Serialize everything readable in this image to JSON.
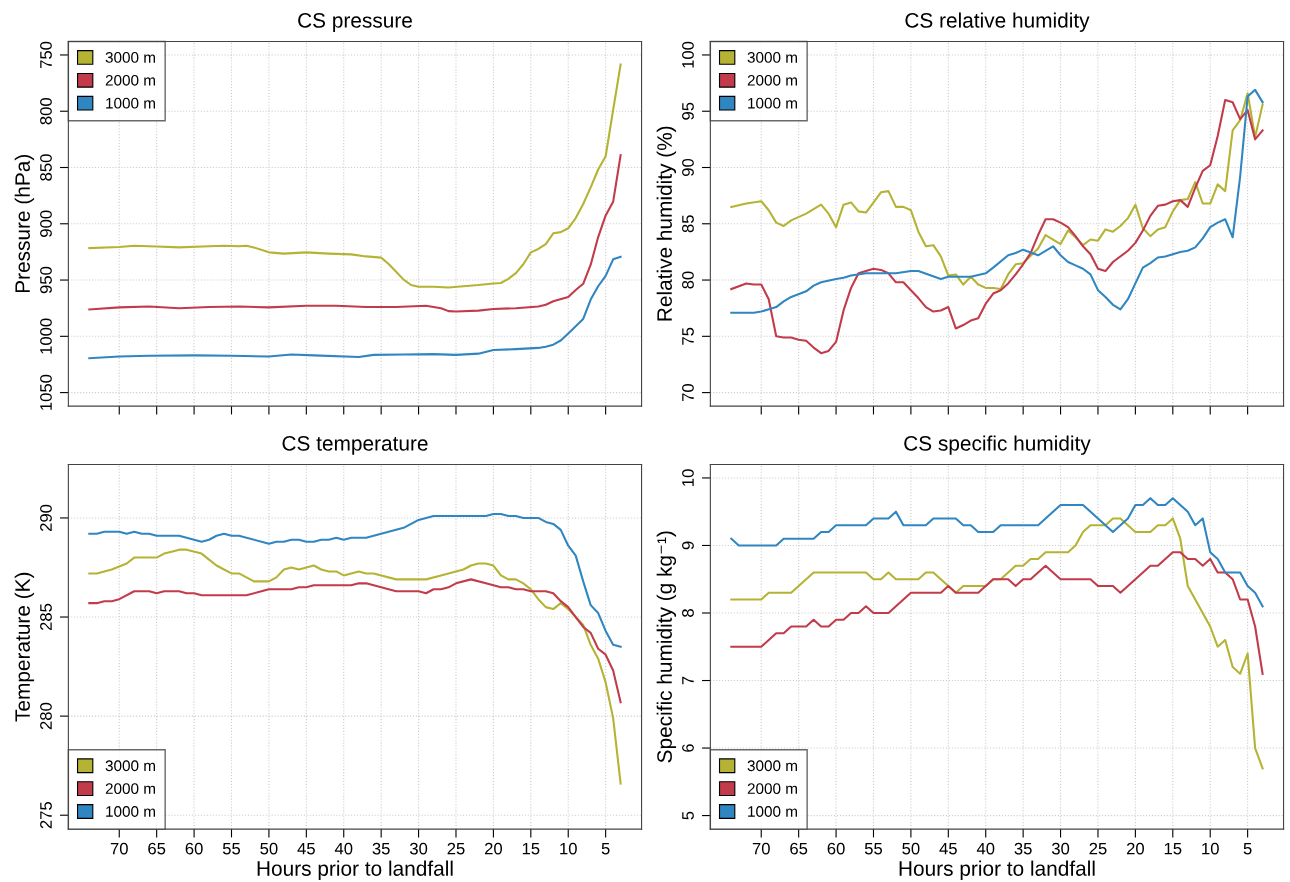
{
  "chart_data": [
    {
      "type": "line",
      "title": "CS pressure",
      "ylabel": "Pressure (hPa)",
      "xlim": [
        76.8,
        0.2
      ],
      "xticks": [
        70,
        65,
        60,
        55,
        50,
        45,
        40,
        35,
        30,
        25,
        20,
        15,
        10,
        5
      ],
      "ylim": [
        1062,
        738
      ],
      "yticks": [
        750,
        800,
        850,
        900,
        950,
        1000,
        1050
      ],
      "tick_labels": "y",
      "grid": true,
      "legend": "top left",
      "line_style": "solid",
      "marker": "none",
      "series": [
        {
          "name": "3000 m",
          "color": "#b5b334",
          "x": [
            74,
            70,
            68,
            65,
            62,
            58,
            56,
            54,
            53,
            52,
            50,
            48,
            45,
            42,
            39,
            37,
            35,
            34,
            33,
            32,
            31,
            30,
            28,
            26,
            24,
            22,
            20,
            19,
            18,
            17,
            16,
            15,
            14,
            13,
            12,
            11,
            10,
            9,
            8,
            7,
            6,
            5,
            4,
            3
          ],
          "values": [
            921.6,
            920.6,
            919.5,
            920.2,
            921,
            920,
            919.5,
            920,
            919.5,
            921,
            925.4,
            926.5,
            925.4,
            926.5,
            927.2,
            929,
            930.1,
            935.7,
            942.6,
            949.6,
            954.4,
            955.9,
            955.9,
            956.6,
            955.5,
            954.4,
            953,
            952.6,
            948.9,
            943.8,
            936,
            925.4,
            922.4,
            918,
            908.5,
            907.4,
            904,
            894.9,
            882.4,
            867.6,
            851.8,
            840,
            798.9,
            758.5
          ]
        },
        {
          "name": "2000 m",
          "color": "#c23b4a",
          "x": [
            74,
            70,
            66,
            62,
            58,
            54,
            50,
            45,
            41,
            37,
            33,
            29,
            27,
            26,
            25,
            22,
            20,
            17,
            14,
            13,
            12,
            10,
            9,
            8,
            7,
            6,
            5,
            4,
            3
          ],
          "values": [
            976.1,
            974.3,
            973.5,
            975,
            974,
            973.5,
            974.3,
            972.8,
            972.8,
            974,
            974,
            972.8,
            975,
            977.6,
            978,
            977.2,
            975.7,
            975,
            973.5,
            972,
            968.8,
            965,
            958.8,
            953.3,
            936.4,
            911.8,
            892.6,
            880.5,
            839
          ]
        },
        {
          "name": "1000 m",
          "color": "#2f86c1",
          "x": [
            74,
            70,
            66,
            60,
            55,
            50,
            47,
            44,
            38,
            36,
            32,
            28,
            25,
            22,
            20,
            17,
            14,
            13,
            12,
            11,
            10,
            8,
            7,
            6,
            5,
            4,
            3
          ],
          "values": [
            1019.5,
            1018,
            1017.3,
            1016.9,
            1017.3,
            1018,
            1016.2,
            1016.9,
            1018.4,
            1016.5,
            1016.2,
            1015.8,
            1016.5,
            1015.4,
            1012.1,
            1011.4,
            1010.3,
            1009.2,
            1007.4,
            1003.7,
            997.4,
            984.6,
            967.3,
            955.5,
            946.3,
            931.6,
            929.4
          ]
        }
      ]
    },
    {
      "type": "line",
      "title": "CS relative humidity",
      "ylabel": "Relative humidity (%)",
      "xlim": [
        76.8,
        0.2
      ],
      "xticks": [
        70,
        65,
        60,
        55,
        50,
        45,
        40,
        35,
        30,
        25,
        20,
        15,
        10,
        5
      ],
      "ylim": [
        68.8,
        101.2
      ],
      "yticks": [
        70,
        75,
        80,
        85,
        90,
        95,
        100
      ],
      "tick_labels": "y",
      "grid": true,
      "legend": "top left",
      "line_style": "solid",
      "marker": "none",
      "series": [
        {
          "name": "3000 m",
          "color": "#b5b334",
          "x": [
            74,
            72,
            70,
            69,
            68,
            67,
            66,
            64,
            62,
            61,
            60,
            59,
            58,
            57,
            56,
            54,
            53,
            52,
            51,
            50,
            49,
            48,
            47,
            46,
            45,
            44,
            43,
            42,
            41,
            40,
            39,
            38,
            37,
            36,
            35,
            33,
            32,
            31,
            30,
            29,
            28,
            27,
            26,
            25,
            24,
            23,
            22,
            21,
            20,
            19,
            18,
            17,
            16,
            15,
            14,
            13,
            12,
            11,
            10,
            9,
            8,
            7,
            6,
            5,
            4,
            3
          ],
          "values": [
            86.5,
            86.8,
            87.0,
            86.2,
            85.1,
            84.8,
            85.3,
            85.9,
            86.7,
            85.9,
            84.7,
            86.7,
            86.9,
            86.1,
            86.0,
            87.8,
            87.9,
            86.5,
            86.5,
            86.2,
            84.3,
            83.0,
            83.1,
            82.1,
            80.4,
            80.5,
            79.6,
            80.3,
            79.6,
            79.3,
            79.3,
            79.2,
            80.5,
            81.4,
            81.5,
            82.8,
            84.0,
            83.6,
            83.2,
            84.4,
            83.8,
            83.1,
            83.6,
            83.5,
            84.5,
            84.3,
            84.8,
            85.5,
            86.7,
            84.6,
            83.9,
            84.5,
            84.7,
            86.1,
            87.1,
            87.2,
            88.7,
            86.8,
            86.8,
            88.5,
            87.9,
            93.3,
            94.2,
            96.6,
            92.7,
            95.6
          ]
        },
        {
          "name": "2000 m",
          "color": "#c23b4a",
          "x": [
            74,
            72,
            71,
            70,
            69,
            68,
            67,
            66,
            65,
            64,
            63,
            62,
            61,
            60,
            59,
            58,
            57,
            56,
            55,
            54,
            53,
            52,
            51,
            50,
            49,
            48,
            47,
            46,
            45,
            44,
            43,
            42,
            41,
            40,
            39,
            38,
            37,
            36,
            35,
            34,
            33,
            32,
            31,
            30,
            29,
            28,
            27,
            26,
            25,
            24,
            23,
            21,
            20,
            19,
            18,
            17,
            16,
            15,
            14,
            13,
            12,
            11,
            10,
            9,
            8,
            7,
            6,
            5,
            4,
            3
          ],
          "values": [
            79.2,
            79.7,
            79.6,
            79.6,
            78.3,
            75.0,
            74.9,
            74.9,
            74.7,
            74.6,
            74.0,
            73.5,
            73.7,
            74.5,
            77.3,
            79.3,
            80.6,
            80.8,
            81.0,
            80.9,
            80.6,
            79.8,
            79.8,
            79.1,
            78.4,
            77.6,
            77.2,
            77.3,
            77.6,
            75.7,
            76.0,
            76.4,
            76.6,
            77.9,
            78.8,
            79.1,
            79.7,
            80.5,
            81.4,
            82.4,
            84.0,
            85.4,
            85.4,
            85.1,
            84.7,
            83.9,
            83.0,
            82.3,
            81.0,
            80.8,
            81.6,
            82.6,
            83.3,
            84.4,
            85.7,
            86.6,
            86.7,
            87.0,
            87.1,
            86.5,
            88.2,
            89.7,
            90.2,
            92.8,
            96.0,
            95.8,
            94.3,
            95.1,
            92.5,
            93.3
          ]
        },
        {
          "name": "1000 m",
          "color": "#2f86c1",
          "x": [
            74,
            71,
            70,
            68,
            67,
            66,
            64,
            63,
            62,
            60,
            59,
            58,
            56,
            52,
            50,
            49,
            46,
            45,
            43,
            42,
            40,
            39,
            37,
            36,
            35,
            33,
            31,
            30,
            29,
            28,
            27,
            26,
            25,
            24,
            23,
            22,
            21,
            20,
            19,
            18,
            17,
            16,
            15,
            14,
            13,
            12,
            11,
            10,
            9,
            8,
            7,
            6,
            5,
            4,
            3
          ],
          "values": [
            77.1,
            77.1,
            77.2,
            77.6,
            78.1,
            78.5,
            79.0,
            79.5,
            79.8,
            80.1,
            80.2,
            80.4,
            80.6,
            80.6,
            80.8,
            80.8,
            80.1,
            80.3,
            80.3,
            80.3,
            80.6,
            81.1,
            82.2,
            82.4,
            82.7,
            82.2,
            83.0,
            82.2,
            81.6,
            81.3,
            81.0,
            80.5,
            79.1,
            78.5,
            77.8,
            77.4,
            78.3,
            79.7,
            81.1,
            81.5,
            82.0,
            82.1,
            82.3,
            82.5,
            82.6,
            82.9,
            83.7,
            84.7,
            85.1,
            85.4,
            83.8,
            89.2,
            96.3,
            96.9,
            95.8
          ]
        }
      ]
    },
    {
      "type": "line",
      "title": "CS temperature",
      "xlabel": "Hours prior to landfall",
      "ylabel": "Temperature (K)",
      "xlim": [
        76.8,
        0.2
      ],
      "xticks": [
        70,
        65,
        60,
        55,
        50,
        45,
        40,
        35,
        30,
        25,
        20,
        15,
        10,
        5
      ],
      "ylim": [
        274.3,
        292.7
      ],
      "yticks": [
        275,
        280,
        285,
        290
      ],
      "grid": true,
      "legend": "bottom left",
      "line_style": "solid",
      "marker": "none",
      "series": [
        {
          "name": "3000 m",
          "color": "#b5b334",
          "x": [
            74,
            73,
            71,
            69,
            68,
            66,
            65,
            64,
            63,
            62,
            61,
            59,
            58,
            57,
            56,
            55,
            54,
            53,
            52,
            50,
            49,
            48,
            47,
            46,
            44,
            43,
            42,
            41,
            40,
            38,
            37,
            36,
            33,
            29,
            27,
            24,
            23,
            22,
            21,
            20,
            19,
            18,
            17,
            16,
            15,
            14,
            13,
            12,
            11,
            10,
            9,
            8,
            7,
            6,
            5,
            4,
            3
          ],
          "values": [
            287.2,
            287.2,
            287.4,
            287.7,
            288.0,
            288.0,
            288.0,
            288.2,
            288.3,
            288.4,
            288.4,
            288.2,
            287.9,
            287.6,
            287.4,
            287.2,
            287.2,
            287.0,
            286.8,
            286.8,
            287.0,
            287.4,
            287.5,
            287.4,
            287.6,
            287.4,
            287.3,
            287.3,
            287.1,
            287.3,
            287.2,
            287.2,
            286.9,
            286.9,
            287.1,
            287.4,
            287.6,
            287.7,
            287.7,
            287.6,
            287.1,
            286.9,
            286.9,
            286.7,
            286.4,
            285.9,
            285.5,
            285.4,
            285.7,
            285.4,
            285.0,
            284.6,
            283.6,
            282.9,
            281.7,
            279.9,
            276.6
          ]
        },
        {
          "name": "2000 m",
          "color": "#c23b4a",
          "x": [
            74,
            73,
            72,
            71,
            70,
            68,
            66,
            65,
            64,
            62,
            61,
            60,
            59,
            53,
            51,
            50,
            47,
            46,
            45,
            44,
            39,
            38,
            37,
            33,
            30,
            29,
            28,
            27,
            26,
            25,
            23,
            21,
            19,
            18,
            17,
            16,
            15,
            13,
            12,
            11,
            10,
            9,
            8,
            7,
            6,
            5,
            4,
            3
          ],
          "values": [
            285.7,
            285.7,
            285.8,
            285.8,
            285.9,
            286.3,
            286.3,
            286.2,
            286.3,
            286.3,
            286.2,
            286.2,
            286.1,
            286.1,
            286.3,
            286.4,
            286.4,
            286.5,
            286.5,
            286.6,
            286.6,
            286.7,
            286.7,
            286.3,
            286.3,
            286.2,
            286.4,
            286.4,
            286.5,
            286.7,
            286.9,
            286.7,
            286.5,
            286.5,
            286.4,
            286.4,
            286.3,
            286.3,
            286.2,
            285.8,
            285.5,
            285.0,
            284.5,
            284.2,
            283.4,
            283.1,
            282.3,
            280.7
          ]
        },
        {
          "name": "1000 m",
          "color": "#2f86c1",
          "x": [
            74,
            73,
            72,
            70,
            69,
            68,
            67,
            66,
            65,
            62,
            59,
            58,
            57,
            56,
            55,
            54,
            50,
            49,
            48,
            47,
            46,
            45,
            44,
            43,
            42,
            41,
            40,
            39,
            37,
            34,
            32,
            30,
            29,
            28,
            23,
            22,
            21,
            20,
            19,
            18,
            17,
            16,
            14,
            13,
            12,
            11,
            10,
            9,
            8,
            7,
            6,
            5,
            4,
            3
          ],
          "values": [
            289.2,
            289.2,
            289.3,
            289.3,
            289.2,
            289.3,
            289.2,
            289.2,
            289.1,
            289.1,
            288.8,
            288.9,
            289.1,
            289.2,
            289.1,
            289.1,
            288.7,
            288.8,
            288.8,
            288.9,
            288.9,
            288.8,
            288.8,
            288.9,
            288.9,
            289.0,
            288.9,
            289.0,
            289.0,
            289.3,
            289.5,
            289.9,
            290.0,
            290.1,
            290.1,
            290.1,
            290.1,
            290.2,
            290.2,
            290.1,
            290.1,
            290.0,
            290.0,
            289.8,
            289.7,
            289.4,
            288.6,
            288.1,
            286.8,
            285.6,
            285.2,
            284.3,
            283.6,
            283.5
          ]
        }
      ]
    },
    {
      "type": "line",
      "title": "CS specific humidity",
      "xlabel": "Hours prior to landfall",
      "ylabel": "Specific humidity (g kg⁻¹)",
      "xlim": [
        76.8,
        0.2
      ],
      "xticks": [
        70,
        65,
        60,
        55,
        50,
        45,
        40,
        35,
        30,
        25,
        20,
        15,
        10,
        5
      ],
      "ylim": [
        4.8,
        10.2
      ],
      "yticks": [
        5,
        6,
        7,
        8,
        9,
        10
      ],
      "grid": true,
      "legend": "bottom left",
      "line_style": "solid",
      "marker": "none",
      "series": [
        {
          "name": "3000 m",
          "color": "#b5b334",
          "x": [
            74,
            70,
            69,
            66,
            63,
            56,
            55,
            54,
            53,
            52,
            49,
            48,
            47,
            45,
            44,
            43,
            40,
            39,
            38,
            36,
            35,
            34,
            33,
            32,
            29,
            28,
            27,
            26,
            24,
            23,
            22,
            20,
            18,
            17,
            16,
            15,
            14,
            13,
            10,
            9,
            8,
            7,
            6,
            5,
            4,
            3
          ],
          "values": [
            8.2,
            8.2,
            8.3,
            8.3,
            8.6,
            8.6,
            8.5,
            8.5,
            8.6,
            8.5,
            8.5,
            8.6,
            8.6,
            8.4,
            8.3,
            8.4,
            8.4,
            8.5,
            8.5,
            8.7,
            8.7,
            8.8,
            8.8,
            8.9,
            8.9,
            9.0,
            9.2,
            9.3,
            9.3,
            9.4,
            9.4,
            9.2,
            9.2,
            9.3,
            9.3,
            9.4,
            9.1,
            8.4,
            7.8,
            7.5,
            7.6,
            7.2,
            7.1,
            7.4,
            6.0,
            5.7
          ]
        },
        {
          "name": "2000 m",
          "color": "#c23b4a",
          "x": [
            74,
            70,
            68,
            67,
            66,
            64,
            63,
            62,
            61,
            60,
            59,
            58,
            57,
            56,
            55,
            53,
            50,
            46,
            45,
            44,
            41,
            39,
            37,
            36,
            35,
            34,
            32,
            30,
            26,
            25,
            23,
            22,
            18,
            17,
            15,
            14,
            13,
            12,
            11,
            10,
            9,
            8,
            7,
            6,
            5,
            4,
            3
          ],
          "values": [
            7.5,
            7.5,
            7.7,
            7.7,
            7.8,
            7.8,
            7.9,
            7.8,
            7.8,
            7.9,
            7.9,
            8.0,
            8.0,
            8.1,
            8.0,
            8.0,
            8.3,
            8.3,
            8.4,
            8.3,
            8.3,
            8.5,
            8.5,
            8.4,
            8.5,
            8.5,
            8.7,
            8.5,
            8.5,
            8.4,
            8.4,
            8.3,
            8.7,
            8.7,
            8.9,
            8.9,
            8.8,
            8.8,
            8.7,
            8.8,
            8.6,
            8.6,
            8.5,
            8.2,
            8.2,
            7.8,
            7.1
          ]
        },
        {
          "name": "1000 m",
          "color": "#2f86c1",
          "x": [
            74,
            73,
            68,
            67,
            63,
            62,
            61,
            60,
            56,
            55,
            53,
            52,
            51,
            48,
            47,
            44,
            43,
            42,
            41,
            39,
            38,
            33,
            30,
            27,
            23,
            21,
            20,
            19,
            18,
            17,
            16,
            15,
            13,
            12,
            11,
            10,
            9,
            8,
            6,
            5,
            4,
            3
          ],
          "values": [
            9.1,
            9.0,
            9.0,
            9.1,
            9.1,
            9.2,
            9.2,
            9.3,
            9.3,
            9.4,
            9.4,
            9.5,
            9.3,
            9.3,
            9.4,
            9.4,
            9.3,
            9.3,
            9.2,
            9.2,
            9.3,
            9.3,
            9.6,
            9.6,
            9.2,
            9.4,
            9.6,
            9.6,
            9.7,
            9.6,
            9.6,
            9.7,
            9.5,
            9.3,
            9.4,
            8.9,
            8.8,
            8.6,
            8.6,
            8.4,
            8.3,
            8.1
          ]
        }
      ]
    }
  ]
}
